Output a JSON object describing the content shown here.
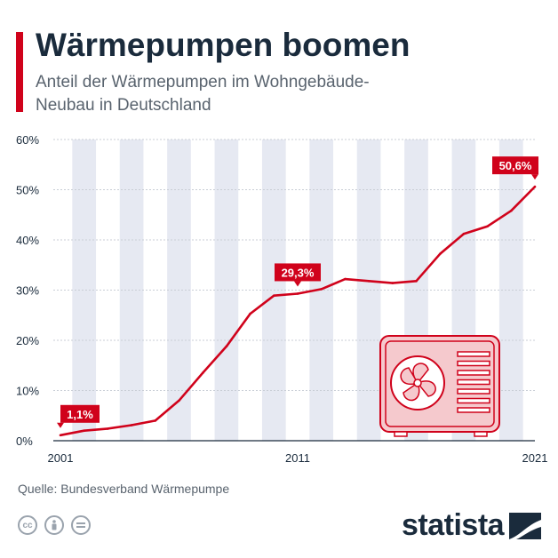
{
  "header": {
    "title": "Wärmepumpen boomen",
    "subtitle": "Anteil der Wärmepumpen im Wohngebäude-Neubau in Deutschland"
  },
  "footer": {
    "source": "Quelle: Bundesverband Wärmepumpe",
    "brand": "statista",
    "license_icons": [
      "creative-commons-icon",
      "attribution-icon",
      "no-derivatives-icon"
    ]
  },
  "colors": {
    "accent": "#d0021b",
    "title": "#1a2b3c",
    "text": "#59636e",
    "stripe": "#e6e9f2"
  },
  "chart_data": {
    "type": "line",
    "title": "Wärmepumpen boomen",
    "subtitle": "Anteil der Wärmepumpen im Wohngebäude-Neubau in Deutschland",
    "x": [
      2001,
      2002,
      2003,
      2004,
      2005,
      2006,
      2007,
      2008,
      2009,
      2010,
      2011,
      2012,
      2013,
      2014,
      2015,
      2016,
      2017,
      2018,
      2019,
      2020,
      2021
    ],
    "series": [
      {
        "values": [
          1.1,
          2.0,
          2.4,
          3.1,
          4.0,
          8.0,
          13.5,
          18.8,
          25.3,
          28.9,
          29.3,
          30.2,
          32.2,
          31.8,
          31.4,
          31.8,
          37.2,
          41.2,
          42.7,
          45.8,
          50.6
        ]
      }
    ],
    "x_tick_labels": [
      "2001",
      "2011",
      "2021"
    ],
    "y_tick_labels": [
      "0%",
      "10%",
      "20%",
      "30%",
      "40%",
      "50%",
      "60%"
    ],
    "ylim": [
      0,
      60
    ],
    "grid": true,
    "annotations": [
      {
        "x": 2001,
        "label": "1,1%"
      },
      {
        "x": 2011,
        "label": "29,3%"
      },
      {
        "x": 2021,
        "label": "50,6%"
      }
    ]
  }
}
